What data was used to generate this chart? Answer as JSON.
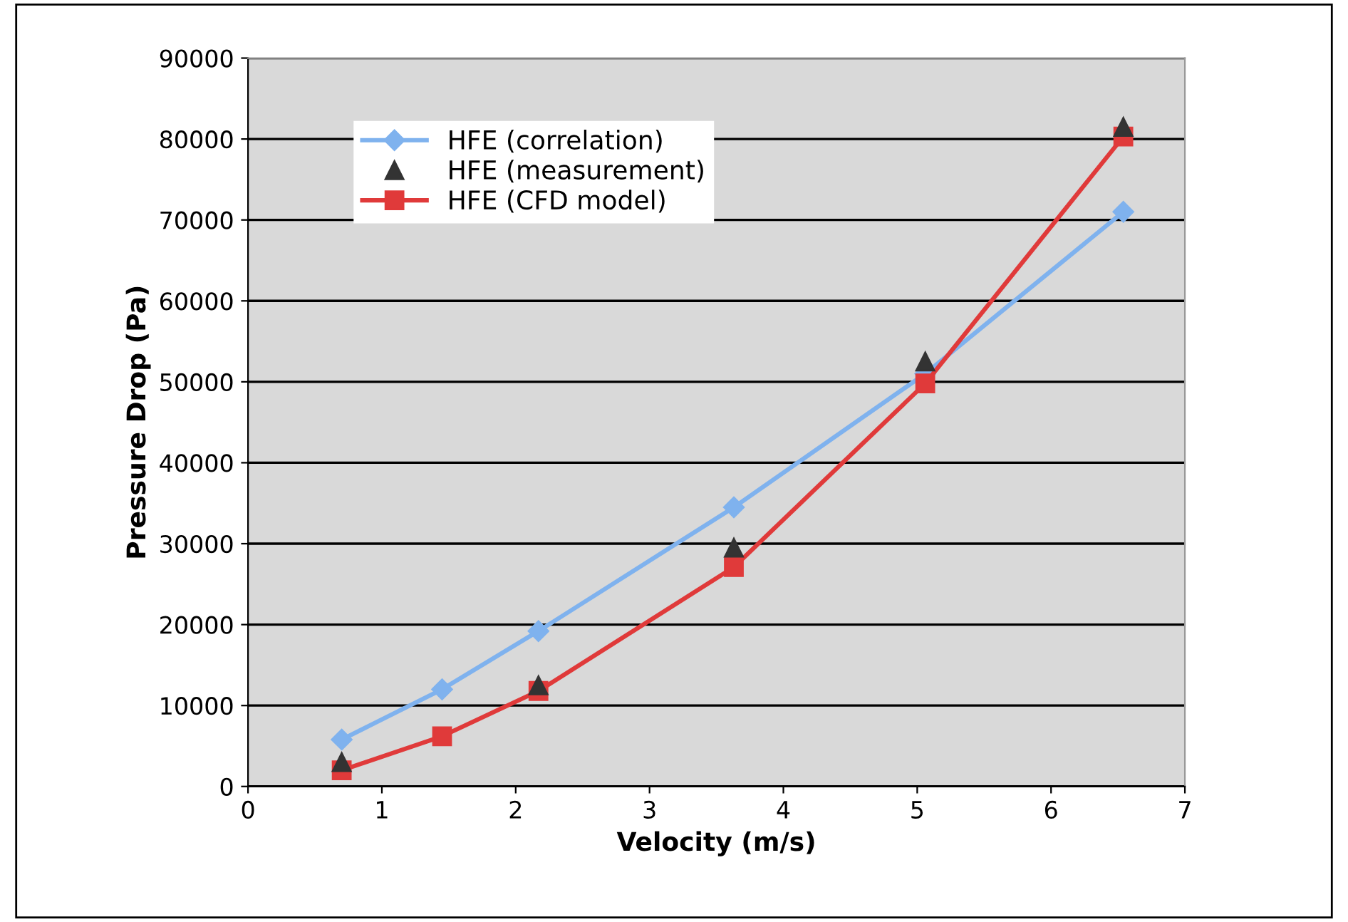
{
  "chart_data": {
    "type": "line",
    "xlabel": "Velocity (m/s)",
    "ylabel": "Pressure Drop (Pa)",
    "x": [
      0.7,
      1.45,
      2.17,
      3.63,
      5.06,
      6.54
    ],
    "series": [
      {
        "name": "HFE (correlation)",
        "color": "#7fb2ee",
        "marker": "diamond",
        "values": [
          5800,
          12000,
          19200,
          34500,
          51000,
          71000
        ]
      },
      {
        "name": "HFE (measurement)",
        "type": "scatter",
        "color": "#333333",
        "marker": "triangle",
        "values": [
          3000,
          null,
          12500,
          29500,
          52500,
          81500
        ]
      },
      {
        "name": "HFE (CFD model)",
        "color": "#e03a3a",
        "marker": "square",
        "values": [
          2000,
          6200,
          11800,
          27100,
          49800,
          80300
        ]
      }
    ],
    "xlim": [
      0,
      7
    ],
    "xticks": [
      0,
      1,
      2,
      3,
      4,
      5,
      6,
      7
    ],
    "ylim": [
      0,
      90000
    ],
    "yticks": [
      0,
      10000,
      20000,
      30000,
      40000,
      50000,
      60000,
      70000,
      80000,
      90000
    ],
    "grid": "y",
    "legend": "top left"
  }
}
